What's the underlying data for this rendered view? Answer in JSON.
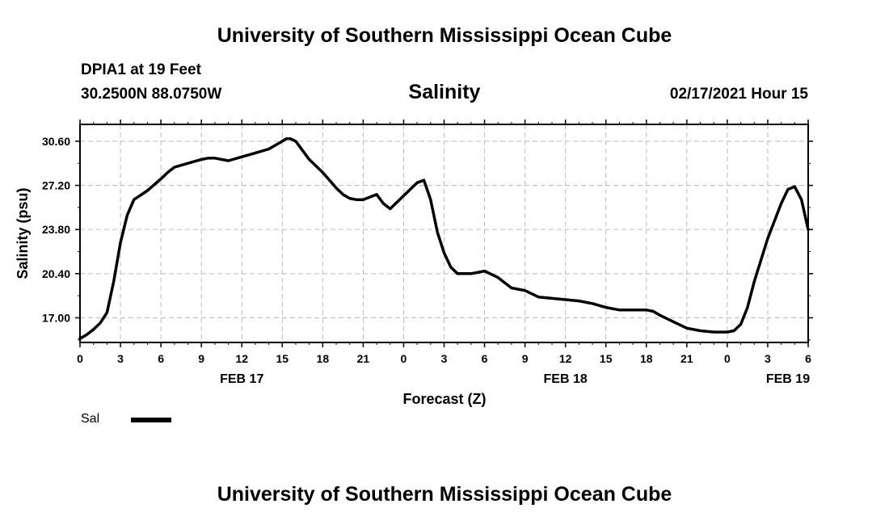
{
  "header": {
    "title": "University of Southern Mississippi Ocean Cube",
    "station": "DPIA1 at 19 Feet",
    "coords": "30.2500N 88.0750W",
    "chart_title": "Salinity",
    "datetime": "02/17/2021 Hour 15"
  },
  "footer": {
    "title": "University of Southern Mississippi Ocean Cube"
  },
  "legend": {
    "label": "Sal"
  },
  "colors": {
    "line": "#000000",
    "grid": "#bbbbbb",
    "background": "#ffffff"
  },
  "chart_data": {
    "type": "line",
    "title": "Salinity",
    "xlabel": "Forecast (Z)",
    "ylabel": "Salinity (psu)",
    "xlim": [
      0,
      54
    ],
    "ylim": [
      15.1,
      31.9
    ],
    "grid": true,
    "y_ticks": [
      17.0,
      20.4,
      23.8,
      27.2,
      30.6
    ],
    "y_tick_labels": [
      "17.00",
      "20.40",
      "23.80",
      "27.20",
      "30.60"
    ],
    "x_ticks": [
      0,
      3,
      6,
      9,
      12,
      15,
      18,
      21,
      24,
      27,
      30,
      33,
      36,
      39,
      42,
      45,
      48,
      51,
      54
    ],
    "x_tick_labels": [
      "0",
      "3",
      "6",
      "9",
      "12",
      "15",
      "18",
      "21",
      "0",
      "3",
      "6",
      "9",
      "12",
      "15",
      "18",
      "21",
      "0",
      "3",
      "6"
    ],
    "date_labels": [
      {
        "x": 12,
        "label": "FEB 17"
      },
      {
        "x": 36,
        "label": "FEB 18"
      },
      {
        "x": 52.5,
        "label": "FEB 19"
      }
    ],
    "series": [
      {
        "name": "Sal",
        "x": [
          0,
          0.5,
          1,
          1.5,
          2,
          2.5,
          3,
          3.5,
          4,
          5,
          6,
          6.5,
          7,
          8,
          9,
          9.5,
          10,
          11,
          12,
          13,
          14,
          15,
          15.3,
          15.6,
          16,
          17,
          18,
          19,
          19.5,
          20,
          20.5,
          21,
          22,
          22.5,
          23,
          24,
          25,
          25.5,
          26,
          26.5,
          27,
          27.5,
          28,
          29,
          30,
          31,
          31.5,
          32,
          32.5,
          33,
          34,
          35,
          36,
          37,
          38,
          39,
          40,
          41,
          42,
          42.5,
          43,
          44,
          45,
          45.5,
          46,
          47,
          48,
          48.5,
          49,
          49.5,
          50,
          51,
          52,
          52.5,
          53,
          53.5,
          54
        ],
        "values": [
          15.4,
          15.7,
          16.1,
          16.6,
          17.4,
          19.8,
          22.8,
          24.9,
          26.1,
          26.8,
          27.7,
          28.2,
          28.6,
          28.9,
          29.2,
          29.3,
          29.3,
          29.1,
          29.4,
          29.7,
          30.0,
          30.6,
          30.8,
          30.8,
          30.6,
          29.2,
          28.2,
          27.0,
          26.5,
          26.2,
          26.1,
          26.1,
          26.5,
          25.8,
          25.4,
          26.4,
          27.4,
          27.6,
          26.1,
          23.6,
          22.0,
          20.9,
          20.4,
          20.4,
          20.6,
          20.1,
          19.7,
          19.3,
          19.2,
          19.1,
          18.6,
          18.5,
          18.4,
          18.3,
          18.1,
          17.8,
          17.6,
          17.6,
          17.6,
          17.5,
          17.2,
          16.7,
          16.2,
          16.1,
          16.0,
          15.9,
          15.9,
          16.0,
          16.5,
          17.8,
          19.8,
          23.1,
          25.8,
          26.9,
          27.1,
          26.1,
          23.8
        ]
      }
    ]
  }
}
